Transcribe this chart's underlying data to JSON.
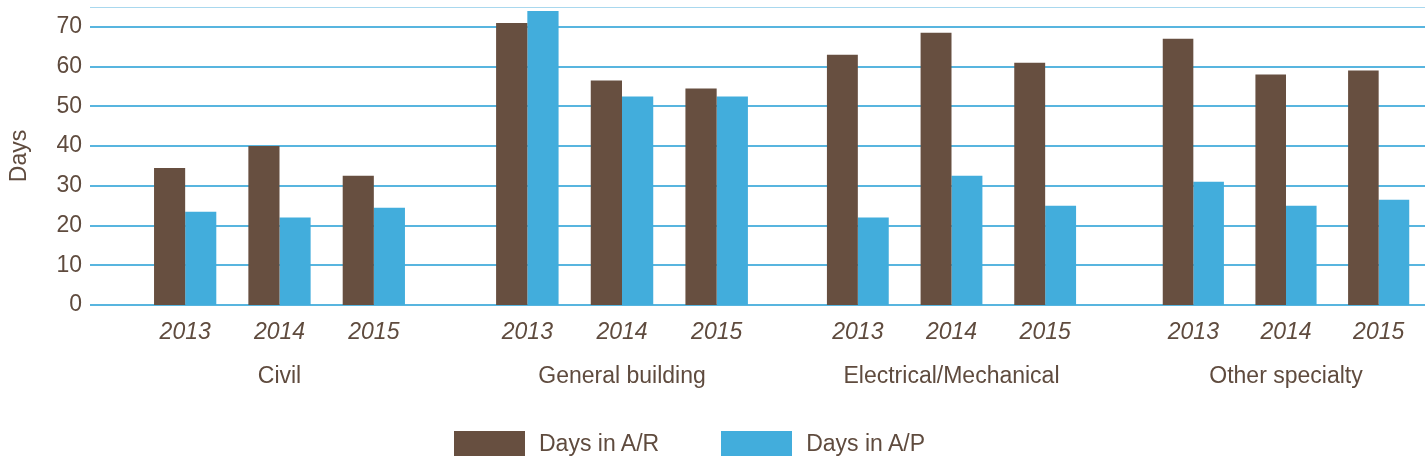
{
  "chart_data": [
    {
      "type": "bar",
      "xlabel": "Civil",
      "ylabel": "Days",
      "categories": [
        "2013",
        "2014",
        "2015"
      ],
      "series": [
        {
          "name": "Days in A/R",
          "color": "#674f40",
          "values": [
            34.5,
            40,
            32.5
          ]
        },
        {
          "name": "Days in A/P",
          "color": "#42addc",
          "values": [
            23.5,
            22,
            24.5
          ]
        }
      ],
      "ylim": [
        0,
        75
      ],
      "yticks": [
        0,
        10,
        20,
        30,
        40,
        50,
        60,
        70
      ],
      "grid": "y",
      "legend": "bottom"
    },
    {
      "type": "bar",
      "xlabel": "General building",
      "categories": [
        "2013",
        "2014",
        "2015"
      ],
      "series": [
        {
          "color": "#674f40",
          "values": [
            71,
            56.5,
            54.5
          ]
        },
        {
          "color": "#42addc",
          "values": [
            74,
            52.5,
            52.5
          ]
        }
      ],
      "ylim": [
        0,
        75
      ],
      "yticks": [
        0,
        10,
        20,
        30,
        40,
        50,
        60,
        70
      ],
      "grid": "y",
      "tick_labels": "x"
    },
    {
      "type": "bar",
      "xlabel": "Electrical/Mechanical",
      "categories": [
        "2013",
        "2014",
        "2015"
      ],
      "series": [
        {
          "color": "#674f40",
          "values": [
            63,
            68.5,
            61
          ]
        },
        {
          "color": "#42addc",
          "values": [
            22,
            32.5,
            25
          ]
        }
      ],
      "ylim": [
        0,
        75
      ],
      "yticks": [
        0,
        10,
        20,
        30,
        40,
        50,
        60,
        70
      ],
      "grid": "y",
      "tick_labels": "x"
    },
    {
      "type": "bar",
      "xlabel": "Other specialty",
      "categories": [
        "2013",
        "2014",
        "2015"
      ],
      "series": [
        {
          "color": "#674f40",
          "values": [
            67,
            58,
            59
          ]
        },
        {
          "color": "#42addc",
          "values": [
            31,
            25,
            26.5
          ]
        }
      ],
      "ylim": [
        0,
        75
      ],
      "yticks": [
        0,
        10,
        20,
        30,
        40,
        50,
        60,
        70
      ],
      "grid": "y",
      "tick_labels": "x"
    }
  ]
}
